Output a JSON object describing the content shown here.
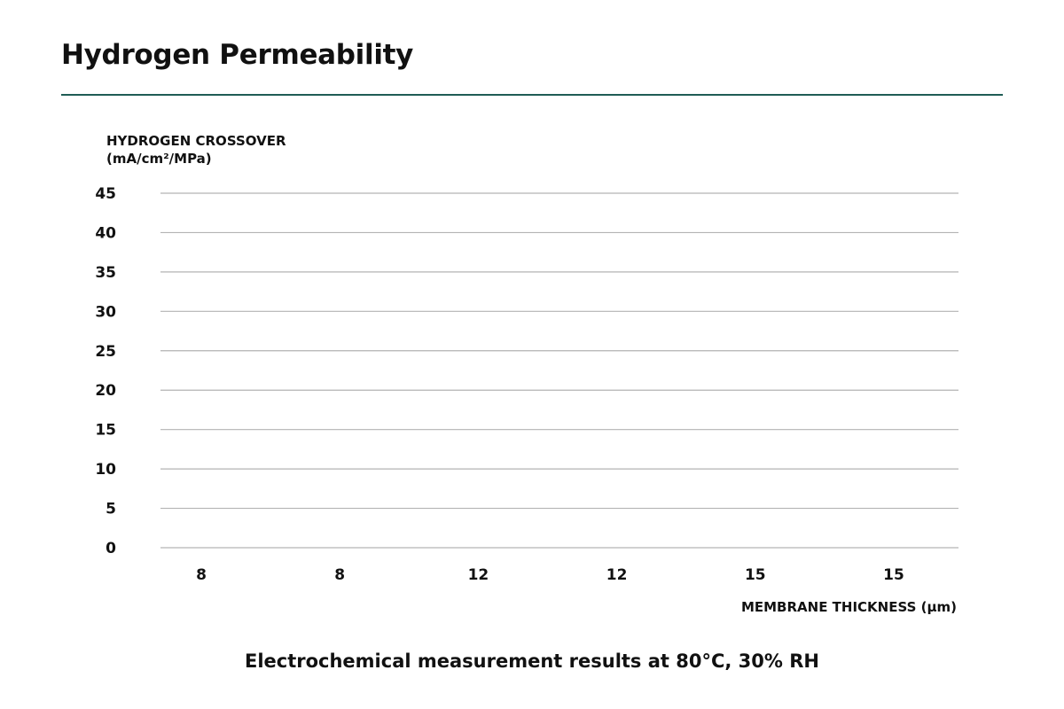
{
  "page": {
    "title": "Hydrogen Permeability",
    "caption": "Electrochemical measurement results at 80°C, 30% RH",
    "accent_color": "#1f5c55"
  },
  "chart_data": {
    "type": "bar",
    "title": "",
    "ylabel_line1": "HYDROGEN CROSSOVER",
    "ylabel_line2": "(mA/cm²/MPa)",
    "xlabel": "MEMBRANE THICKNESS (μm)",
    "categories": [
      "8",
      "8",
      "12",
      "12",
      "15",
      "15"
    ],
    "yticks": [
      0,
      5,
      10,
      15,
      20,
      25,
      30,
      35,
      40,
      45
    ],
    "ylim": [
      0,
      45
    ],
    "grid": true,
    "grid_color": "#b3b3b3",
    "series": []
  }
}
